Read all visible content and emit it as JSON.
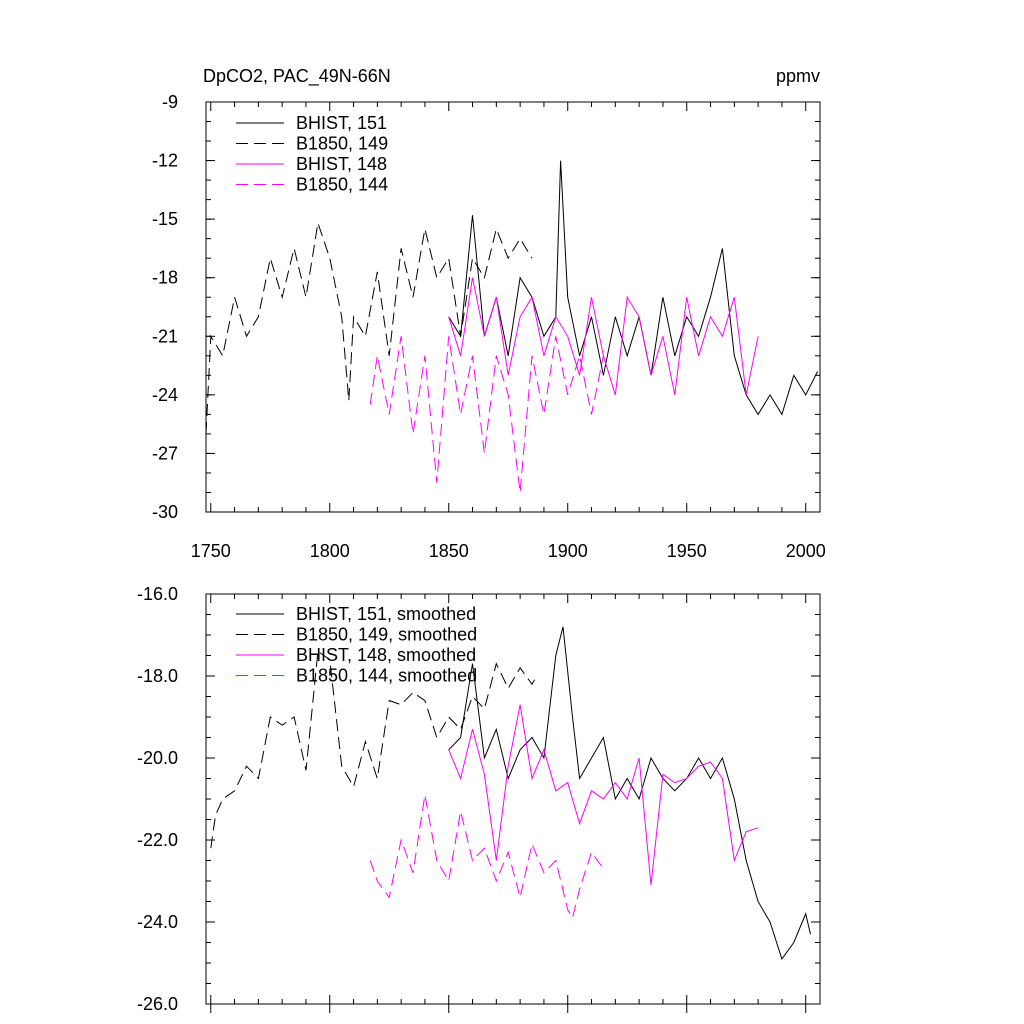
{
  "chart_data": [
    {
      "type": "line",
      "title": "DpCO2, PAC_49N-66N",
      "units": "ppmv",
      "xlim": [
        1748,
        2006
      ],
      "ylim": [
        -30,
        -9
      ],
      "xticks": [
        1750,
        1800,
        1850,
        1900,
        1950,
        2000
      ],
      "yticks": [
        -9,
        -12,
        -15,
        -18,
        -21,
        -24,
        -27,
        -30
      ],
      "legend_position": "top-left",
      "series": [
        {
          "name": "BHIST, 151",
          "color": "#000000",
          "dash": "solid",
          "x": [
            1850,
            1855,
            1860,
            1865,
            1870,
            1875,
            1880,
            1885,
            1890,
            1895,
            1897,
            1900,
            1905,
            1910,
            1915,
            1920,
            1925,
            1930,
            1935,
            1940,
            1945,
            1950,
            1955,
            1960,
            1965,
            1970,
            1975,
            1980,
            1985,
            1990,
            1995,
            2000,
            2005
          ],
          "y": [
            -20,
            -21,
            -14.8,
            -21,
            -19,
            -22,
            -18,
            -19,
            -21,
            -20,
            -12,
            -19,
            -22,
            -20,
            -23,
            -20,
            -22,
            -20,
            -23,
            -19,
            -22,
            -20,
            -21,
            -19,
            -16.5,
            -22,
            -24,
            -25,
            -24,
            -25,
            -23,
            -24,
            -22.8
          ]
        },
        {
          "name": "B1850, 149",
          "color": "#000000",
          "dash": "dashed",
          "x": [
            1748,
            1750,
            1755,
            1760,
            1765,
            1770,
            1775,
            1780,
            1785,
            1790,
            1795,
            1800,
            1805,
            1808,
            1810,
            1815,
            1820,
            1825,
            1830,
            1835,
            1840,
            1845,
            1850,
            1855,
            1860,
            1865,
            1870,
            1875,
            1880,
            1885
          ],
          "y": [
            -26,
            -21,
            -22,
            -19,
            -21,
            -20,
            -17,
            -19,
            -16.5,
            -19,
            -15.2,
            -17,
            -20,
            -24.3,
            -20,
            -21,
            -17.7,
            -22,
            -16.5,
            -19,
            -15.5,
            -18,
            -17,
            -21,
            -17,
            -18,
            -15.5,
            -17,
            -16,
            -17
          ]
        },
        {
          "name": "BHIST, 148",
          "color": "#ff00ff",
          "dash": "solid",
          "x": [
            1850,
            1855,
            1860,
            1865,
            1870,
            1875,
            1880,
            1885,
            1890,
            1895,
            1900,
            1905,
            1910,
            1915,
            1920,
            1925,
            1930,
            1935,
            1940,
            1945,
            1950,
            1955,
            1960,
            1965,
            1970,
            1975,
            1980
          ],
          "y": [
            -20,
            -22,
            -18,
            -21,
            -19,
            -23,
            -20,
            -19,
            -22,
            -20,
            -21,
            -23,
            -19,
            -22,
            -24,
            -19,
            -20,
            -23,
            -21,
            -24,
            -19,
            -22,
            -20,
            -21,
            -19,
            -24,
            -21
          ]
        },
        {
          "name": "B1850, 144",
          "color": "#ff00ff",
          "dash": "dashed",
          "x": [
            1817,
            1820,
            1825,
            1830,
            1835,
            1840,
            1845,
            1850,
            1855,
            1860,
            1865,
            1870,
            1875,
            1880,
            1885,
            1890,
            1895,
            1900,
            1905,
            1910,
            1915
          ],
          "y": [
            -24.5,
            -22,
            -25,
            -21,
            -26,
            -22,
            -28.5,
            -21,
            -25,
            -22,
            -27,
            -22,
            -24,
            -29,
            -22,
            -25,
            -21,
            -24,
            -22,
            -25,
            -22
          ]
        }
      ]
    },
    {
      "type": "line",
      "title": "",
      "xlim": [
        1748,
        2006
      ],
      "ylim": [
        -26,
        -16
      ],
      "yticks": [
        "-16.0",
        "-18.0",
        "-20.0",
        "-22.0",
        "-24.0",
        "-26.0"
      ],
      "yticks_values": [
        -16,
        -18,
        -20,
        -22,
        -24,
        -26
      ],
      "legend_position": "top-left",
      "series": [
        {
          "name": "BHIST, 151, smoothed",
          "color": "#000000",
          "dash": "solid",
          "x": [
            1850,
            1855,
            1860,
            1865,
            1870,
            1875,
            1880,
            1885,
            1890,
            1895,
            1898,
            1902,
            1905,
            1910,
            1915,
            1920,
            1925,
            1930,
            1935,
            1940,
            1945,
            1950,
            1955,
            1960,
            1965,
            1970,
            1975,
            1980,
            1985,
            1990,
            1995,
            2000,
            2002
          ],
          "y": [
            -19.8,
            -19.5,
            -17.7,
            -20,
            -19.3,
            -20.5,
            -19.8,
            -19.5,
            -20,
            -17.5,
            -16.8,
            -19,
            -20.5,
            -20,
            -19.5,
            -21,
            -20.5,
            -21,
            -20,
            -20.5,
            -20.8,
            -20.5,
            -20,
            -20.5,
            -20,
            -21,
            -22.5,
            -23.5,
            -24,
            -24.9,
            -24.5,
            -23.8,
            -24.3
          ]
        },
        {
          "name": "B1850, 149, smoothed",
          "color": "#000000",
          "dash": "dashed",
          "x": [
            1750,
            1752,
            1755,
            1760,
            1765,
            1770,
            1775,
            1780,
            1785,
            1790,
            1795,
            1800,
            1805,
            1810,
            1815,
            1820,
            1825,
            1830,
            1835,
            1840,
            1845,
            1850,
            1855,
            1860,
            1865,
            1870,
            1875,
            1880,
            1885,
            1887
          ],
          "y": [
            -22.2,
            -21.4,
            -21,
            -20.8,
            -20.2,
            -20.5,
            -19,
            -19.2,
            -19,
            -20.3,
            -17.4,
            -17.6,
            -20.2,
            -20.7,
            -19.6,
            -20.5,
            -18.6,
            -18.7,
            -18.4,
            -18.6,
            -19.5,
            -19,
            -19.3,
            -18.5,
            -18.8,
            -17.7,
            -18.3,
            -17.8,
            -18.2,
            -18
          ]
        },
        {
          "name": "BHIST, 148, smoothed",
          "color": "#ff00ff",
          "dash": "solid",
          "x": [
            1850,
            1855,
            1860,
            1865,
            1870,
            1875,
            1880,
            1885,
            1890,
            1895,
            1900,
            1905,
            1910,
            1915,
            1920,
            1925,
            1930,
            1935,
            1940,
            1945,
            1950,
            1955,
            1960,
            1965,
            1970,
            1975,
            1980
          ],
          "y": [
            -19.8,
            -20.5,
            -19.3,
            -20.4,
            -22.5,
            -20.2,
            -18.7,
            -20.5,
            -19.8,
            -20.8,
            -20.6,
            -21.6,
            -20.8,
            -21,
            -20.6,
            -21,
            -20,
            -23.1,
            -20.4,
            -20.6,
            -20.5,
            -20.2,
            -20.1,
            -20.5,
            -22.5,
            -21.8,
            -21.7
          ]
        },
        {
          "name": "B1850, 144, smoothed",
          "color": "#ff00ff",
          "dash": "dashed",
          "x": [
            1817,
            1820,
            1825,
            1830,
            1835,
            1840,
            1845,
            1850,
            1855,
            1860,
            1865,
            1870,
            1875,
            1880,
            1885,
            1890,
            1895,
            1900,
            1902,
            1905,
            1910,
            1915
          ],
          "y": [
            -22.5,
            -23,
            -23.4,
            -22,
            -22.8,
            -20.9,
            -22.5,
            -23,
            -21.3,
            -22.5,
            -22.2,
            -23,
            -22.3,
            -23.4,
            -22.1,
            -22.8,
            -22.5,
            -23.7,
            -23.9,
            -23.2,
            -22.3,
            -22.7
          ]
        }
      ]
    }
  ]
}
